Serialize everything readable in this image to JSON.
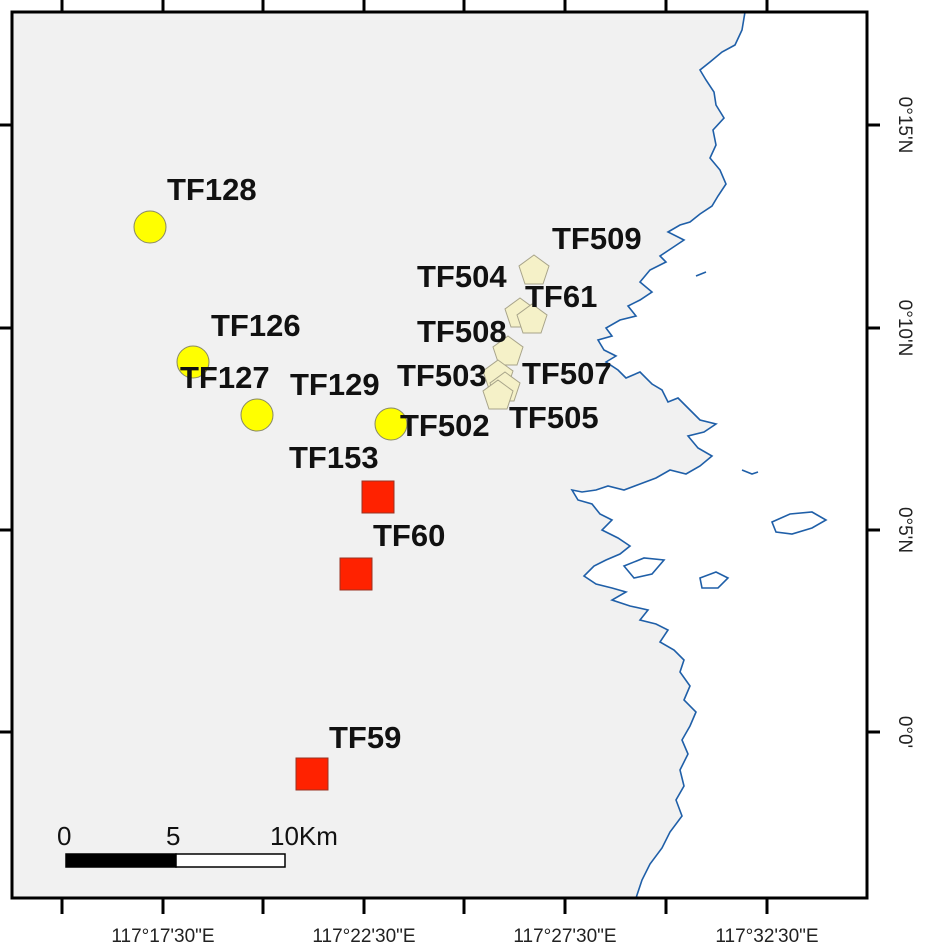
{
  "map": {
    "colors": {
      "land": "#f1f1f1",
      "frame": "#000000",
      "coastline": "#1f5fa8",
      "circle_site": "#ffff00",
      "pentagon_site": "#f5f1c8",
      "square_site": "#ff2200"
    },
    "longitude_ticks": [
      "117°17'30\"E",
      "117°22'30\"E",
      "117°27'30\"E",
      "117°32'30\"E"
    ],
    "latitude_ticks": [
      "0°15'N",
      "0°10'N",
      "0°5'N",
      "0°0'"
    ],
    "scale_bar": {
      "labels": [
        "0",
        "5",
        "10Km"
      ]
    },
    "sites": [
      {
        "id": "TF128",
        "label": "TF128",
        "symbol": "circle"
      },
      {
        "id": "TF126",
        "label": "TF126",
        "symbol": "circle"
      },
      {
        "id": "TF127",
        "label": "TF127",
        "symbol": "circle"
      },
      {
        "id": "TF129",
        "label": "TF129",
        "symbol": "circle"
      },
      {
        "id": "TF502",
        "label": "TF502",
        "symbol": "circle"
      },
      {
        "id": "TF509",
        "label": "TF509",
        "symbol": "pentagon"
      },
      {
        "id": "TF504",
        "label": "TF504",
        "symbol": "pentagon"
      },
      {
        "id": "TF61",
        "label": "TF61",
        "symbol": "pentagon"
      },
      {
        "id": "TF508",
        "label": "TF508",
        "symbol": "pentagon"
      },
      {
        "id": "TF503",
        "label": "TF503",
        "symbol": "pentagon"
      },
      {
        "id": "TF507",
        "label": "TF507",
        "symbol": "pentagon"
      },
      {
        "id": "TF505",
        "label": "TF505",
        "symbol": "pentagon"
      },
      {
        "id": "TF153",
        "label": "TF153",
        "symbol": "square"
      },
      {
        "id": "TF60",
        "label": "TF60",
        "symbol": "square"
      },
      {
        "id": "TF59",
        "label": "TF59",
        "symbol": "square"
      }
    ]
  }
}
